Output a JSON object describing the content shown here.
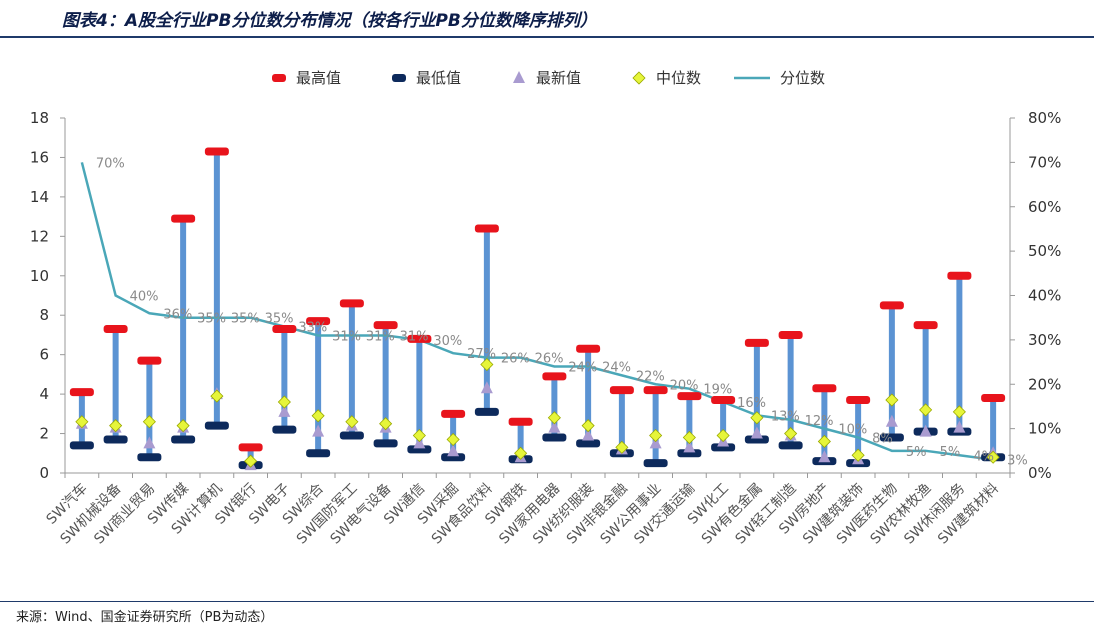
{
  "header": {
    "title": "图表4：A股全行业PB分位数分布情况（按各行业PB分位数降序排列）"
  },
  "footer": {
    "source": "来源：Wind、国金证券研究所（PB为动态）"
  },
  "colors": {
    "max": "#e8141c",
    "min": "#0d2a5c",
    "latest": "#a99bd0",
    "median": "#e6f53a",
    "percentile": "#4aa7b8",
    "range": "#5b93d3"
  },
  "chart_data": {
    "type": "line",
    "legend": [
      "最高值",
      "最低值",
      "最新值",
      "中位数",
      "分位数"
    ],
    "legend_position": "top",
    "categories": [
      "SW汽车",
      "SW机械设备",
      "SW商业贸易",
      "SW传媒",
      "SW计算机",
      "SW银行",
      "SW电子",
      "SW综合",
      "SW国防军工",
      "SW电气设备",
      "SW通信",
      "SW采掘",
      "SW食品饮料",
      "SW钢铁",
      "SW家用电器",
      "SW纺织服装",
      "SW非银金融",
      "SW公用事业",
      "SW交通运输",
      "SW化工",
      "SW有色金属",
      "SW轻工制造",
      "SW房地产",
      "SW建筑装饰",
      "SW医药生物",
      "SW农林牧渔",
      "SW休闲服务",
      "SW建筑材料"
    ],
    "series": [
      {
        "name": "最高值",
        "values": [
          4.1,
          7.3,
          5.7,
          12.9,
          16.3,
          1.3,
          7.3,
          7.7,
          8.6,
          7.5,
          6.8,
          3.0,
          12.4,
          2.6,
          4.9,
          6.3,
          4.2,
          4.2,
          3.9,
          3.7,
          6.6,
          7.0,
          4.3,
          3.7,
          8.5,
          7.5,
          10.0,
          3.8
        ]
      },
      {
        "name": "最低值",
        "values": [
          1.4,
          1.7,
          0.8,
          1.7,
          2.4,
          0.4,
          2.2,
          1.0,
          1.9,
          1.5,
          1.2,
          0.8,
          3.1,
          0.7,
          1.8,
          1.5,
          1.0,
          0.5,
          1.0,
          1.3,
          1.7,
          1.4,
          0.6,
          0.5,
          1.8,
          2.1,
          2.1,
          0.8
        ]
      },
      {
        "name": "最新值",
        "values": [
          2.5,
          2.3,
          1.5,
          2.3,
          4.0,
          0.4,
          3.1,
          2.1,
          2.4,
          2.3,
          1.5,
          1.1,
          4.3,
          0.8,
          2.3,
          1.9,
          1.2,
          1.5,
          1.3,
          1.6,
          2.0,
          1.9,
          0.8,
          0.7,
          2.6,
          2.1,
          2.3,
          1.0
        ]
      },
      {
        "name": "中位数",
        "values": [
          2.6,
          2.4,
          2.6,
          2.4,
          3.9,
          0.6,
          3.6,
          2.9,
          2.6,
          2.5,
          1.9,
          1.7,
          5.5,
          1.0,
          2.8,
          2.4,
          1.3,
          1.9,
          1.8,
          1.9,
          2.8,
          2.0,
          1.6,
          0.9,
          3.7,
          3.2,
          3.1,
          0.8
        ]
      },
      {
        "name": "分位数",
        "axis": "right",
        "values": [
          70,
          40,
          36,
          35,
          35,
          35,
          33,
          31,
          31,
          31,
          30,
          27,
          26,
          26,
          24,
          24,
          22,
          20,
          19,
          16,
          13,
          12,
          10,
          8,
          5,
          5,
          4,
          3
        ],
        "labels": [
          "70%",
          "40%",
          "36%",
          "35%",
          "35%",
          "35%",
          "33%",
          "31%",
          "31%",
          "31%",
          "30%",
          "27%",
          "26%",
          "26%",
          "24%",
          "24%",
          "22%",
          "20%",
          "19%",
          "16%",
          "13%",
          "12%",
          "10%",
          "8%",
          "5%",
          "5%",
          "4%",
          "3%"
        ]
      }
    ],
    "y_left": {
      "min": 0,
      "max": 18,
      "ticks": [
        "0",
        "2",
        "4",
        "6",
        "8",
        "10",
        "12",
        "14",
        "16",
        "18"
      ]
    },
    "y_right": {
      "min": 0,
      "max": 80,
      "ticks": [
        "0%",
        "10%",
        "20%",
        "30%",
        "40%",
        "50%",
        "60%",
        "70%",
        "80%"
      ]
    },
    "grid": false
  }
}
